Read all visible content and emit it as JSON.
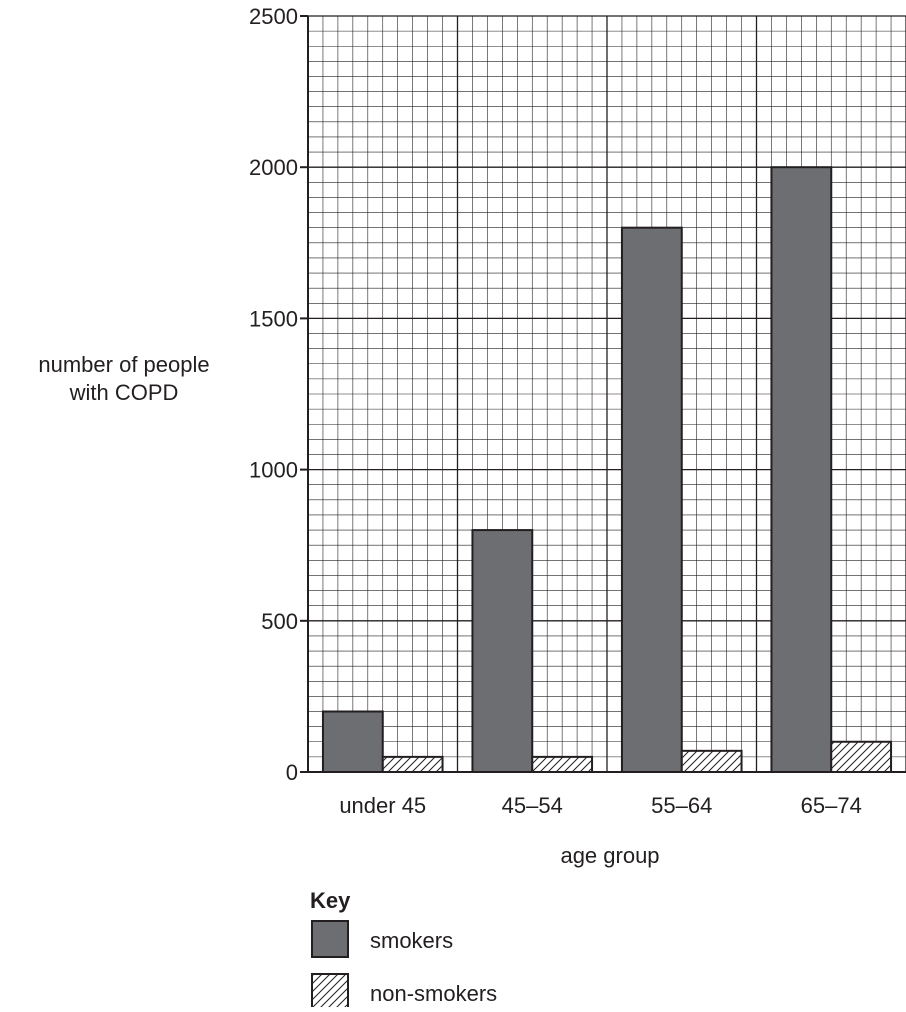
{
  "chart_data": {
    "type": "bar",
    "categories": [
      "under 45",
      "45–54",
      "55–64",
      "65–74"
    ],
    "series": [
      {
        "name": "smokers",
        "values": [
          200,
          800,
          1800,
          2000
        ],
        "color": "#6d6e71",
        "fill": "solid"
      },
      {
        "name": "non-smokers",
        "values": [
          50,
          50,
          70,
          100
        ],
        "color": "#ffffff",
        "fill": "hatch"
      }
    ],
    "title": "",
    "ylabel": [
      "number of people",
      "with COPD"
    ],
    "xlabel": "age group",
    "ylim": [
      0,
      2500
    ],
    "yticks": [
      0,
      500,
      1000,
      1500,
      2000,
      2500
    ],
    "grid": true,
    "legend": {
      "title": "Key",
      "placement": "bottom-left"
    }
  }
}
